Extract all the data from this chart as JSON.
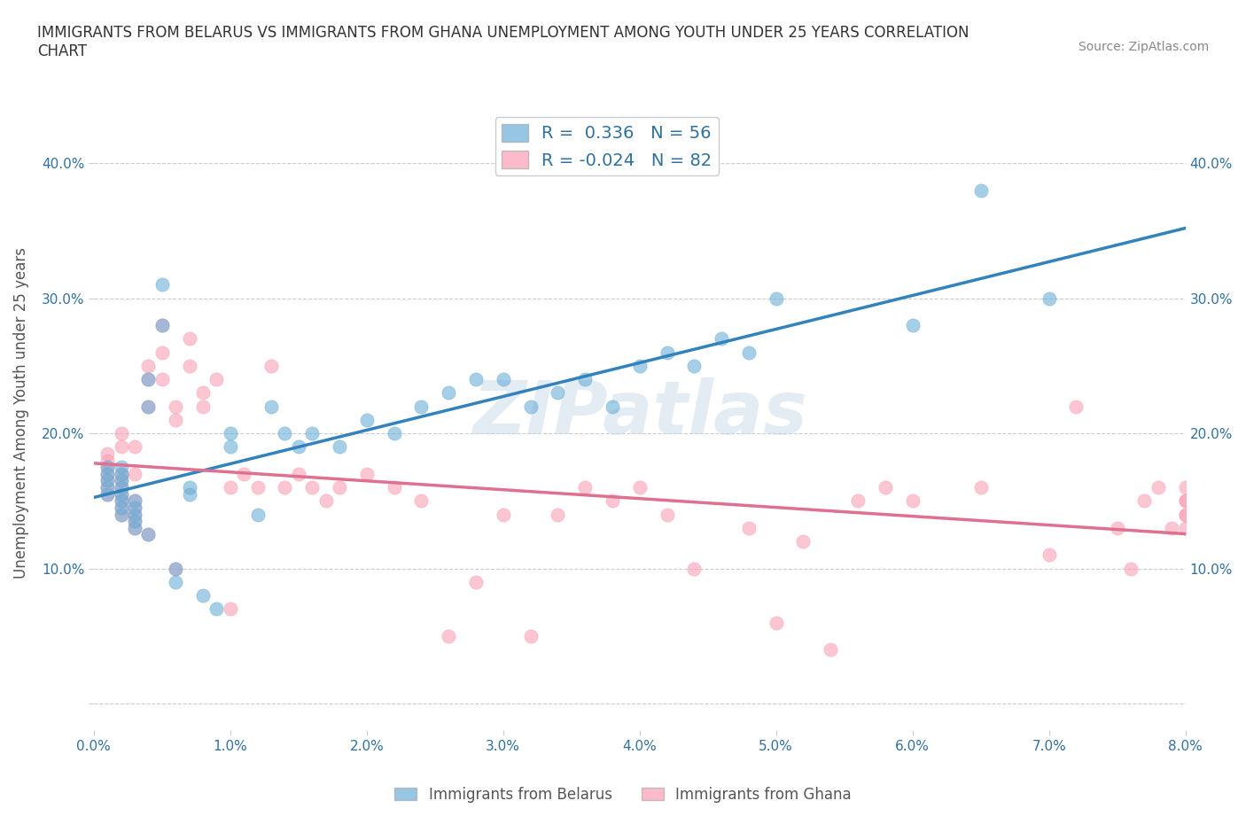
{
  "title": "IMMIGRANTS FROM BELARUS VS IMMIGRANTS FROM GHANA UNEMPLOYMENT AMONG YOUTH UNDER 25 YEARS CORRELATION\nCHART",
  "source": "Source: ZipAtlas.com",
  "ylabel": "Unemployment Among Youth under 25 years",
  "xlabel": "",
  "xlim": [
    0.0,
    0.08
  ],
  "ylim": [
    -0.02,
    0.45
  ],
  "xticks": [
    0.0,
    0.01,
    0.02,
    0.03,
    0.04,
    0.05,
    0.06,
    0.07,
    0.08
  ],
  "xticklabels": [
    "0.0%",
    "1.0%",
    "2.0%",
    "3.0%",
    "4.0%",
    "5.0%",
    "6.0%",
    "7.0%",
    "8.0%"
  ],
  "yticks": [
    0.0,
    0.1,
    0.2,
    0.3,
    0.4
  ],
  "yticklabels": [
    "",
    "10.0%",
    "20.0%",
    "30.0%",
    "40.0%"
  ],
  "belarus_color": "#6baed6",
  "ghana_color": "#fa9fb5",
  "belarus_R": 0.336,
  "belarus_N": 56,
  "ghana_R": -0.024,
  "ghana_N": 82,
  "watermark": "ZIPatlas",
  "watermark_color": "#c8d8e8",
  "legend_label_belarus": "Immigrants from Belarus",
  "legend_label_ghana": "Immigrants from Ghana",
  "grid_color": "#cccccc",
  "trend_blue_color": "#3182bd",
  "trend_pink_color": "#e07090",
  "belarus_x": [
    0.001,
    0.001,
    0.001,
    0.001,
    0.001,
    0.002,
    0.002,
    0.002,
    0.002,
    0.002,
    0.002,
    0.002,
    0.002,
    0.003,
    0.003,
    0.003,
    0.003,
    0.003,
    0.004,
    0.004,
    0.004,
    0.005,
    0.005,
    0.006,
    0.006,
    0.007,
    0.007,
    0.008,
    0.009,
    0.01,
    0.01,
    0.012,
    0.013,
    0.014,
    0.015,
    0.016,
    0.018,
    0.02,
    0.022,
    0.024,
    0.026,
    0.028,
    0.03,
    0.032,
    0.034,
    0.036,
    0.038,
    0.04,
    0.042,
    0.044,
    0.046,
    0.048,
    0.05,
    0.06,
    0.065,
    0.07
  ],
  "belarus_y": [
    0.155,
    0.16,
    0.165,
    0.17,
    0.175,
    0.14,
    0.145,
    0.15,
    0.155,
    0.16,
    0.165,
    0.17,
    0.175,
    0.13,
    0.135,
    0.14,
    0.145,
    0.15,
    0.125,
    0.22,
    0.24,
    0.28,
    0.31,
    0.1,
    0.09,
    0.155,
    0.16,
    0.08,
    0.07,
    0.19,
    0.2,
    0.14,
    0.22,
    0.2,
    0.19,
    0.2,
    0.19,
    0.21,
    0.2,
    0.22,
    0.23,
    0.24,
    0.24,
    0.22,
    0.23,
    0.24,
    0.22,
    0.25,
    0.26,
    0.25,
    0.27,
    0.26,
    0.3,
    0.28,
    0.38,
    0.3
  ],
  "ghana_x": [
    0.001,
    0.001,
    0.001,
    0.001,
    0.001,
    0.001,
    0.001,
    0.002,
    0.002,
    0.002,
    0.002,
    0.002,
    0.002,
    0.002,
    0.002,
    0.002,
    0.003,
    0.003,
    0.003,
    0.003,
    0.003,
    0.003,
    0.003,
    0.004,
    0.004,
    0.004,
    0.004,
    0.005,
    0.005,
    0.005,
    0.006,
    0.006,
    0.006,
    0.007,
    0.007,
    0.008,
    0.008,
    0.009,
    0.01,
    0.01,
    0.011,
    0.012,
    0.013,
    0.014,
    0.015,
    0.016,
    0.017,
    0.018,
    0.02,
    0.022,
    0.024,
    0.026,
    0.028,
    0.03,
    0.032,
    0.034,
    0.036,
    0.038,
    0.04,
    0.042,
    0.044,
    0.048,
    0.05,
    0.052,
    0.054,
    0.056,
    0.058,
    0.06,
    0.065,
    0.07,
    0.072,
    0.075,
    0.076,
    0.077,
    0.078,
    0.079,
    0.08,
    0.08,
    0.08,
    0.08,
    0.08,
    0.08
  ],
  "ghana_y": [
    0.155,
    0.16,
    0.165,
    0.17,
    0.175,
    0.18,
    0.185,
    0.14,
    0.145,
    0.15,
    0.155,
    0.16,
    0.165,
    0.17,
    0.19,
    0.2,
    0.13,
    0.135,
    0.14,
    0.145,
    0.15,
    0.17,
    0.19,
    0.125,
    0.22,
    0.24,
    0.25,
    0.28,
    0.24,
    0.26,
    0.1,
    0.21,
    0.22,
    0.25,
    0.27,
    0.22,
    0.23,
    0.24,
    0.16,
    0.07,
    0.17,
    0.16,
    0.25,
    0.16,
    0.17,
    0.16,
    0.15,
    0.16,
    0.17,
    0.16,
    0.15,
    0.05,
    0.09,
    0.14,
    0.05,
    0.14,
    0.16,
    0.15,
    0.16,
    0.14,
    0.1,
    0.13,
    0.06,
    0.12,
    0.04,
    0.15,
    0.16,
    0.15,
    0.16,
    0.11,
    0.22,
    0.13,
    0.1,
    0.15,
    0.16,
    0.13,
    0.14,
    0.15,
    0.16,
    0.13,
    0.14,
    0.15
  ]
}
